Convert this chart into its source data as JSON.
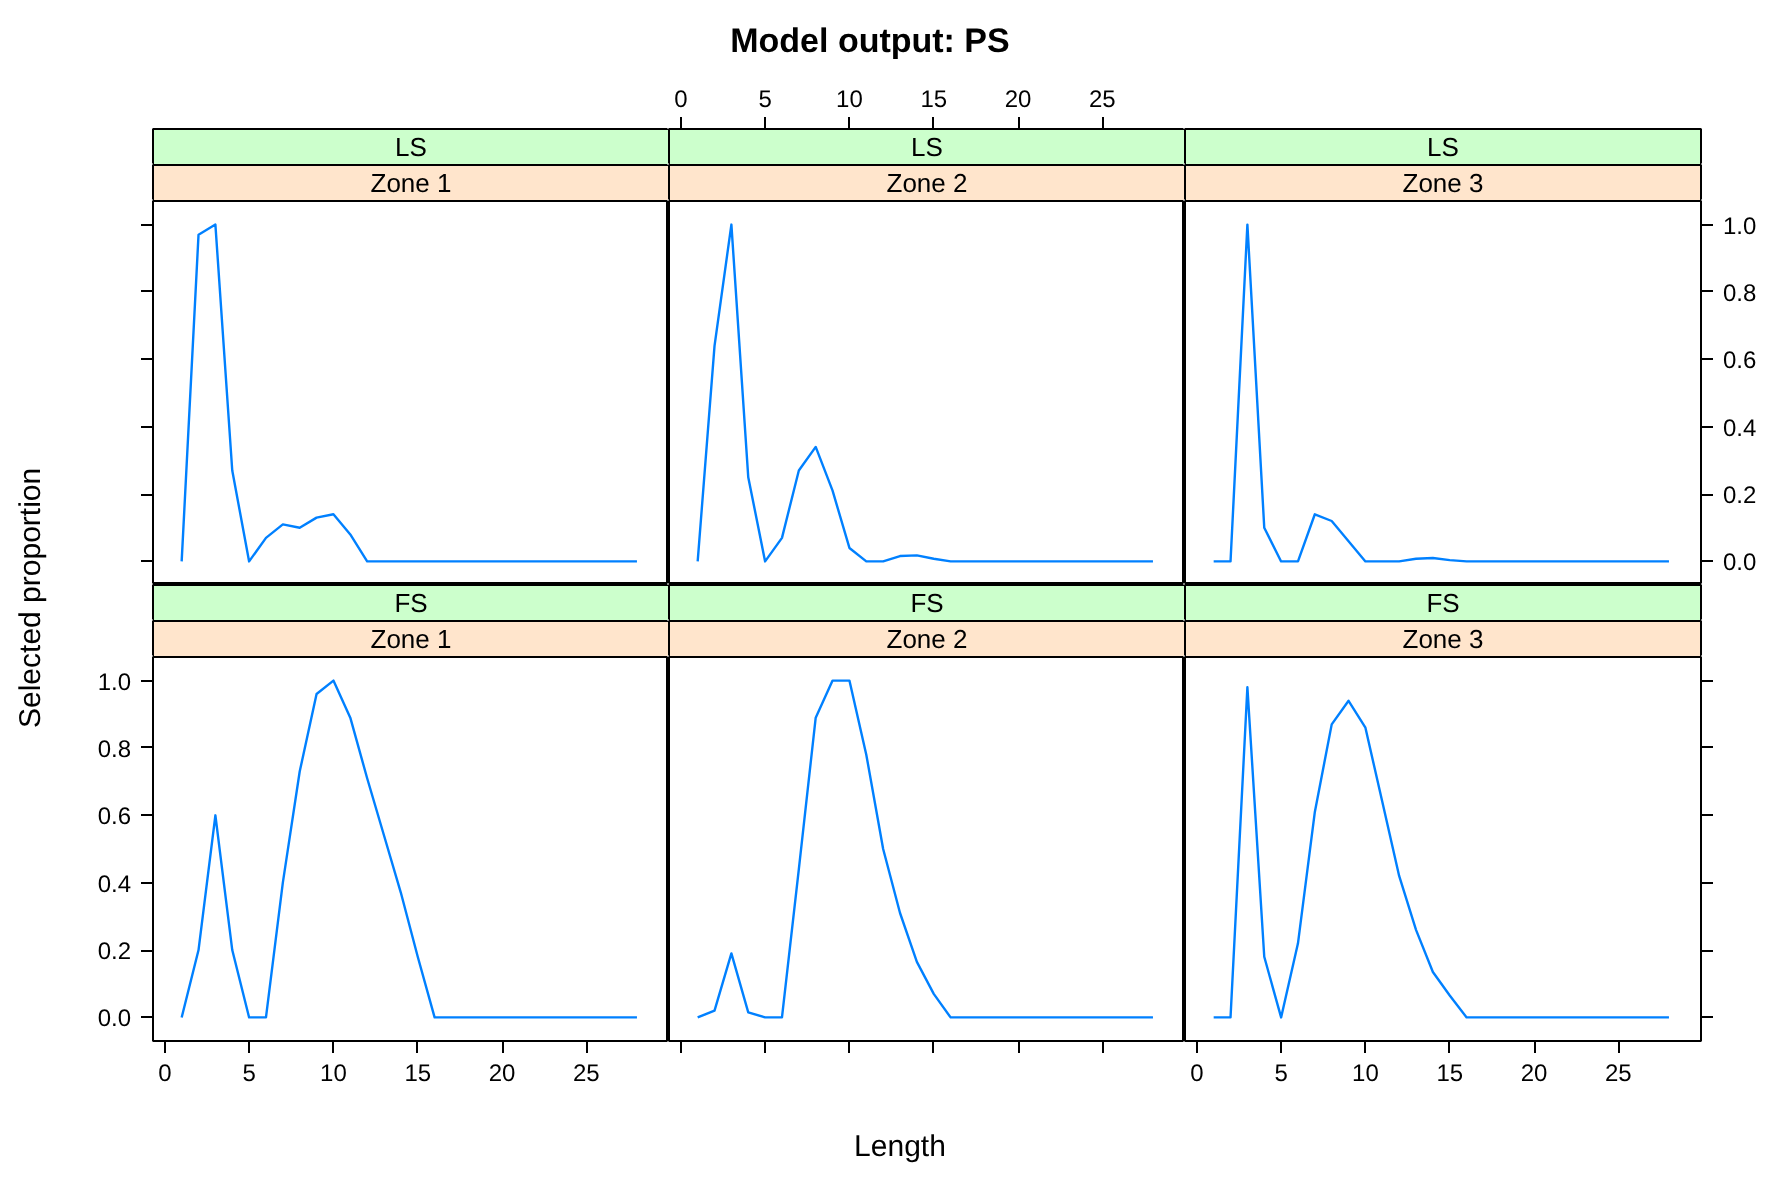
{
  "chart_data": [
    {
      "type": "other",
      "title": "Model output: PS",
      "xlabel": "Length",
      "ylabel": "Selected proportion"
    },
    {
      "type": "line",
      "title": "LS",
      "subtitle": "Zone 1",
      "tick_labels": false,
      "color": "#0080ff",
      "xlim": [
        -0.7,
        29.9
      ],
      "ylim": [
        -0.07,
        1.07
      ],
      "yticks": [
        {
          "value": 0,
          "label": null
        },
        {
          "value": 0.2,
          "label": null
        },
        {
          "value": 0.4,
          "label": null
        },
        {
          "value": 0.6,
          "label": null
        },
        {
          "value": 0.8,
          "label": null
        },
        {
          "value": 1,
          "label": null
        }
      ],
      "x": [
        1,
        2,
        3,
        4,
        5,
        6,
        7,
        8,
        9,
        10,
        11,
        12,
        13,
        14,
        15,
        16,
        17,
        18,
        19,
        20,
        21,
        22,
        23,
        24,
        25,
        26,
        27,
        28
      ],
      "values": [
        0,
        0.97,
        1.0,
        0.27,
        0,
        0.07,
        0.11,
        0.1,
        0.13,
        0.14,
        0.08,
        0,
        0,
        0,
        0,
        0,
        0,
        0,
        0,
        0,
        0,
        0,
        0,
        0,
        0,
        0,
        0,
        0
      ]
    },
    {
      "type": "line",
      "title": "LS",
      "subtitle": "Zone 2",
      "tick_labels": "x",
      "color": "#0080ff",
      "xlim": [
        -0.7,
        29.9
      ],
      "ylim": [
        -0.07,
        1.07
      ],
      "xticks": [
        0,
        5,
        10,
        15,
        20,
        25
      ],
      "x": [
        1,
        2,
        3,
        4,
        5,
        6,
        7,
        8,
        9,
        10,
        11,
        12,
        13,
        14,
        15,
        16,
        17,
        18,
        19,
        20,
        21,
        22,
        23,
        24,
        25,
        26,
        27,
        28
      ],
      "values": [
        0,
        0.64,
        1.0,
        0.25,
        0,
        0.07,
        0.27,
        0.34,
        0.21,
        0.04,
        0,
        0,
        0.016,
        0.018,
        0.008,
        0,
        0,
        0,
        0,
        0,
        0,
        0,
        0,
        0,
        0,
        0,
        0,
        0
      ]
    },
    {
      "type": "line",
      "title": "LS",
      "subtitle": "Zone 3",
      "tick_labels": "y",
      "color": "#0080ff",
      "xlim": [
        -0.7,
        29.9
      ],
      "ylim": [
        -0.07,
        1.07
      ],
      "yticks": [
        {
          "value": 0,
          "label": "0.0"
        },
        {
          "value": 0.2,
          "label": "0.2"
        },
        {
          "value": 0.4,
          "label": "0.4"
        },
        {
          "value": 0.6,
          "label": "0.6"
        },
        {
          "value": 0.8,
          "label": "0.8"
        },
        {
          "value": 1,
          "label": "1.0"
        }
      ],
      "x": [
        1,
        2,
        3,
        4,
        5,
        6,
        7,
        8,
        9,
        10,
        11,
        12,
        13,
        14,
        15,
        16,
        17,
        18,
        19,
        20,
        21,
        22,
        23,
        24,
        25,
        26,
        27,
        28
      ],
      "values": [
        0,
        0,
        1.0,
        0.1,
        0,
        0,
        0.14,
        0.12,
        0.06,
        0,
        0,
        0,
        0.008,
        0.01,
        0.004,
        0,
        0,
        0,
        0,
        0,
        0,
        0,
        0,
        0,
        0,
        0,
        0,
        0
      ]
    },
    {
      "type": "line",
      "title": "FS",
      "subtitle": "Zone 1",
      "color": "#0080ff",
      "xlim": [
        -0.7,
        29.9
      ],
      "ylim": [
        -0.07,
        1.07
      ],
      "xticks": [
        0,
        5,
        10,
        15,
        20,
        25
      ],
      "yticks": [
        {
          "value": 0,
          "label": "0.0"
        },
        {
          "value": 0.2,
          "label": "0.2"
        },
        {
          "value": 0.4,
          "label": "0.4"
        },
        {
          "value": 0.6,
          "label": "0.6"
        },
        {
          "value": 0.8,
          "label": "0.8"
        },
        {
          "value": 1,
          "label": "1.0"
        }
      ],
      "x": [
        1,
        2,
        3,
        4,
        5,
        6,
        7,
        8,
        9,
        10,
        11,
        12,
        13,
        14,
        15,
        16,
        17,
        18,
        19,
        20,
        21,
        22,
        23,
        24,
        25,
        26,
        27,
        28
      ],
      "values": [
        0,
        0.2,
        0.6,
        0.2,
        0,
        0,
        0.4,
        0.73,
        0.96,
        1.0,
        0.89,
        0.71,
        0.54,
        0.37,
        0.18,
        0,
        0,
        0,
        0,
        0,
        0,
        0,
        0,
        0,
        0,
        0,
        0,
        0
      ]
    },
    {
      "type": "line",
      "title": "FS",
      "subtitle": "Zone 2",
      "tick_labels": false,
      "color": "#0080ff",
      "xlim": [
        -0.7,
        29.9
      ],
      "ylim": [
        -0.07,
        1.07
      ],
      "xticks": [
        {
          "value": 0,
          "label": null
        },
        {
          "value": 5,
          "label": null
        },
        {
          "value": 10,
          "label": null
        },
        {
          "value": 15,
          "label": null
        },
        {
          "value": 20,
          "label": null
        },
        {
          "value": 25,
          "label": null
        }
      ],
      "x": [
        1,
        2,
        3,
        4,
        5,
        6,
        7,
        8,
        9,
        10,
        11,
        12,
        13,
        14,
        15,
        16,
        17,
        18,
        19,
        20,
        21,
        22,
        23,
        24,
        25,
        26,
        27,
        28
      ],
      "values": [
        0,
        0.02,
        0.19,
        0.015,
        0,
        0,
        0.44,
        0.89,
        1.0,
        1.0,
        0.78,
        0.5,
        0.31,
        0.165,
        0.07,
        0,
        0,
        0,
        0,
        0,
        0,
        0,
        0,
        0,
        0,
        0,
        0,
        0
      ]
    },
    {
      "type": "line",
      "title": "FS",
      "subtitle": "Zone 3",
      "tick_labels": "x",
      "color": "#0080ff",
      "xlim": [
        -0.7,
        29.9
      ],
      "ylim": [
        -0.07,
        1.07
      ],
      "xticks": [
        0,
        5,
        10,
        15,
        20,
        25
      ],
      "yticks": [
        {
          "value": 0,
          "label": null
        },
        {
          "value": 0.2,
          "label": null
        },
        {
          "value": 0.4,
          "label": null
        },
        {
          "value": 0.6,
          "label": null
        },
        {
          "value": 0.8,
          "label": null
        },
        {
          "value": 1,
          "label": null
        }
      ],
      "x": [
        1,
        2,
        3,
        4,
        5,
        6,
        7,
        8,
        9,
        10,
        11,
        12,
        13,
        14,
        15,
        16,
        17,
        18,
        19,
        20,
        21,
        22,
        23,
        24,
        25,
        26,
        27,
        28
      ],
      "values": [
        0,
        0,
        0.98,
        0.18,
        0,
        0.22,
        0.61,
        0.87,
        0.94,
        0.86,
        0.64,
        0.42,
        0.26,
        0.135,
        0.065,
        0,
        0,
        0,
        0,
        0,
        0,
        0,
        0,
        0,
        0,
        0,
        0,
        0
      ]
    }
  ]
}
